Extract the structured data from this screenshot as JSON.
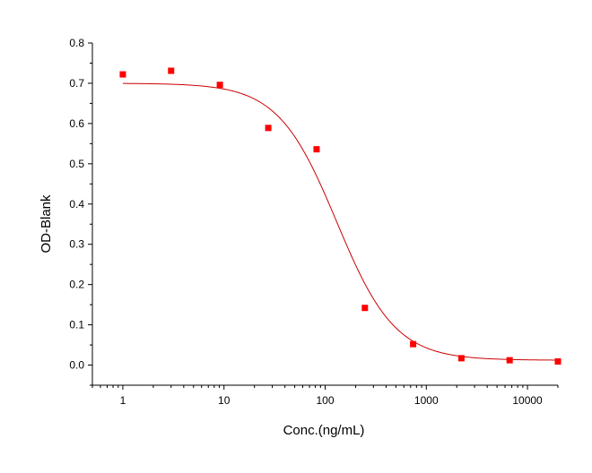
{
  "chart_data": {
    "type": "scatter",
    "title": "",
    "xlabel": "Conc.(ng/mL)",
    "ylabel": "OD-Blank",
    "xscale": "log",
    "xlim": [
      0.5,
      20000
    ],
    "ylim": [
      -0.05,
      0.8
    ],
    "grid": false,
    "legend": "none",
    "x_ticks": [
      1,
      10,
      100,
      1000,
      10000
    ],
    "x_tick_labels": [
      "1",
      "10",
      "100",
      "1000",
      "10000"
    ],
    "y_ticks": [
      0.0,
      0.1,
      0.2,
      0.3,
      0.4,
      0.5,
      0.6,
      0.7,
      0.8
    ],
    "y_tick_labels": [
      "0.0",
      "0.1",
      "0.2",
      "0.3",
      "0.4",
      "0.5",
      "0.6",
      "0.7",
      "0.8"
    ],
    "marker_color": "#ff0000",
    "line_color": "#cc0000",
    "points": [
      {
        "x": 1,
        "y": 0.722
      },
      {
        "x": 3,
        "y": 0.731
      },
      {
        "x": 9.1,
        "y": 0.696
      },
      {
        "x": 27.4,
        "y": 0.589
      },
      {
        "x": 82.3,
        "y": 0.536
      },
      {
        "x": 247,
        "y": 0.142
      },
      {
        "x": 741,
        "y": 0.052
      },
      {
        "x": 2222,
        "y": 0.017
      },
      {
        "x": 6667,
        "y": 0.012
      },
      {
        "x": 20000,
        "y": 0.009
      }
    ],
    "fit_curve": {
      "model": "4PL",
      "top": 0.7,
      "bottom": 0.012,
      "ec50": 130,
      "hill": 1.5,
      "x_range": [
        1,
        20000
      ]
    }
  }
}
